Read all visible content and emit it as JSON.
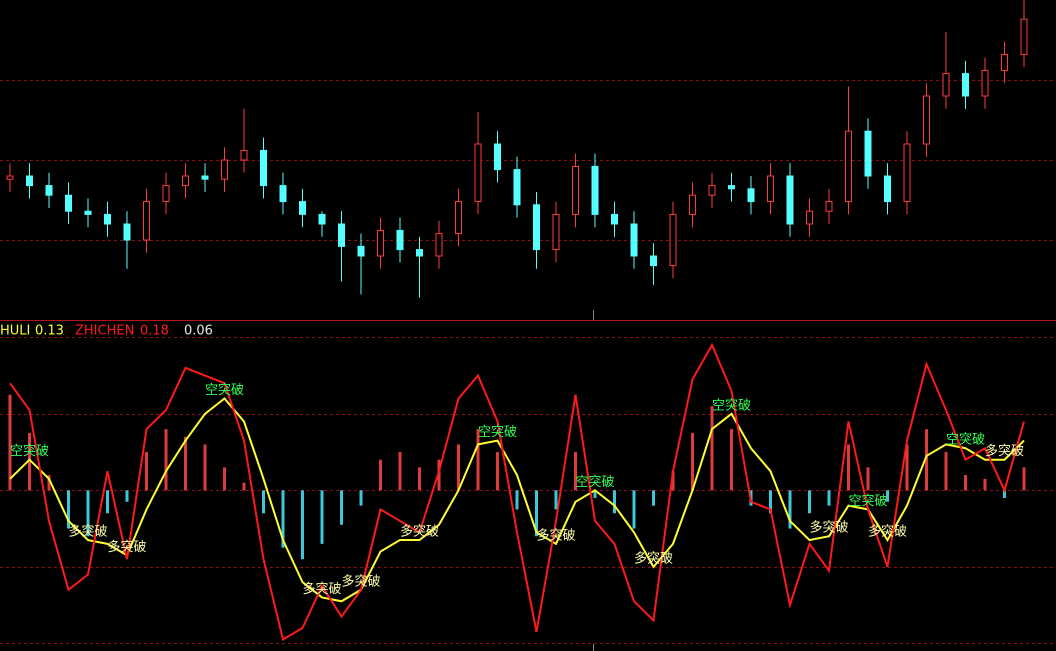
{
  "chart_data": [
    {
      "type": "candlestick",
      "open": [
        44,
        45,
        42,
        39,
        34,
        33,
        30,
        25,
        37,
        42,
        45,
        44,
        50,
        53,
        42,
        37,
        33,
        30,
        23,
        20,
        28,
        22,
        20,
        27,
        37,
        55,
        47,
        36,
        22,
        33,
        48,
        33,
        30,
        20,
        17,
        33,
        39,
        42,
        41,
        37,
        45,
        30,
        34,
        37,
        59,
        45,
        37,
        55,
        70,
        77,
        70,
        78,
        83
      ],
      "high": [
        49,
        49,
        46,
        43,
        38,
        37,
        34,
        41,
        46,
        49,
        49,
        54,
        66,
        57,
        46,
        41,
        34,
        34,
        27,
        32,
        32,
        26,
        31,
        41,
        65,
        59,
        51,
        40,
        37,
        52,
        52,
        37,
        34,
        24,
        37,
        43,
        46,
        46,
        45,
        49,
        49,
        38,
        41,
        73,
        63,
        49,
        59,
        74,
        90,
        81,
        82,
        87,
        100
      ],
      "low": [
        40,
        38,
        35,
        30,
        29,
        26,
        16,
        21,
        33,
        38,
        40,
        40,
        46,
        38,
        33,
        29,
        26,
        12,
        8,
        16,
        18,
        7,
        16,
        23,
        33,
        43,
        32,
        16,
        18,
        29,
        29,
        26,
        16,
        11,
        13,
        29,
        35,
        37,
        33,
        33,
        26,
        26,
        30,
        33,
        41,
        33,
        33,
        51,
        66,
        66,
        66,
        74,
        79
      ],
      "close": [
        45,
        42,
        39,
        34,
        33,
        30,
        25,
        37,
        42,
        45,
        44,
        50,
        53,
        42,
        37,
        33,
        30,
        23,
        20,
        28,
        22,
        20,
        27,
        37,
        55,
        47,
        36,
        22,
        33,
        48,
        33,
        30,
        20,
        17,
        33,
        39,
        42,
        41,
        37,
        45,
        30,
        34,
        37,
        59,
        45,
        37,
        55,
        70,
        77,
        70,
        78,
        83,
        94
      ],
      "up_color": "#ff3c3c",
      "down_color": "#54ffff",
      "ylim": [
        0,
        100
      ],
      "yticks": [
        25,
        50,
        75
      ],
      "grid": true,
      "grid_color": "#8c1010"
    },
    {
      "type": "line",
      "series": [
        {
          "name": "HULI",
          "type": "line",
          "color": "#ffff33",
          "values": [
            0.03,
            0.08,
            0.03,
            -0.08,
            -0.13,
            -0.14,
            -0.17,
            -0.05,
            0.05,
            0.13,
            0.2,
            0.24,
            0.18,
            0.03,
            -0.13,
            -0.24,
            -0.28,
            -0.29,
            -0.26,
            -0.16,
            -0.13,
            -0.13,
            -0.09,
            0,
            0.12,
            0.13,
            0.04,
            -0.11,
            -0.14,
            -0.03,
            0,
            -0.04,
            -0.11,
            -0.2,
            -0.14,
            0,
            0.16,
            0.2,
            0.11,
            0.05,
            -0.08,
            -0.13,
            -0.12,
            -0.04,
            -0.05,
            -0.13,
            -0.04,
            0.09,
            0.12,
            0.11,
            0.08,
            0.08,
            0.13
          ]
        },
        {
          "name": "ZHICHEN",
          "type": "line",
          "color": "#ff1a1a",
          "values": [
            0.28,
            0.21,
            -0.08,
            -0.26,
            -0.22,
            0.05,
            -0.18,
            0.16,
            0.21,
            0.32,
            0.3,
            0.28,
            0.13,
            -0.18,
            -0.39,
            -0.36,
            -0.25,
            -0.33,
            -0.26,
            -0.05,
            -0.08,
            -0.11,
            0.05,
            0.24,
            0.3,
            0.18,
            -0.11,
            -0.37,
            -0.08,
            0.25,
            -0.08,
            -0.14,
            -0.29,
            -0.34,
            0.05,
            0.29,
            0.38,
            0.26,
            -0.03,
            -0.05,
            -0.3,
            -0.14,
            -0.21,
            0.18,
            -0.05,
            -0.2,
            0.13,
            0.33,
            0.21,
            0.08,
            0.11,
            0,
            0.18
          ]
        },
        {
          "type": "bar",
          "up_color": "#e03c3c",
          "down_color": "#3cc8d8",
          "values": [
            0.25,
            0.15,
            0.04,
            -0.1,
            -0.12,
            -0.06,
            -0.03,
            0.1,
            0.16,
            0.14,
            0.12,
            0.06,
            0.02,
            -0.06,
            -0.15,
            -0.18,
            -0.14,
            -0.09,
            -0.04,
            0.08,
            0.1,
            0.06,
            0.08,
            0.12,
            0.16,
            0.1,
            -0.05,
            -0.12,
            -0.05,
            0.1,
            -0.02,
            -0.06,
            -0.1,
            -0.04,
            0.05,
            0.15,
            0.22,
            0.16,
            -0.04,
            -0.06,
            -0.1,
            -0.06,
            -0.04,
            0.12,
            0.06,
            -0.03,
            0.12,
            0.16,
            0.1,
            0.04,
            0.03,
            -0.02,
            0.06
          ]
        }
      ],
      "signals": [
        null,
        "空突破",
        null,
        null,
        "多突破",
        null,
        "多突破",
        null,
        null,
        null,
        null,
        "空突破",
        null,
        null,
        null,
        null,
        "多突破",
        null,
        "多突破",
        null,
        null,
        "多突破",
        null,
        null,
        null,
        "空突破",
        null,
        null,
        "多突破",
        null,
        "空突破",
        null,
        null,
        "多突破",
        null,
        null,
        null,
        "空突破",
        null,
        null,
        null,
        null,
        "多突破",
        null,
        "空突破",
        "多突破",
        null,
        null,
        null,
        "空突破",
        null,
        "多突破",
        null
      ],
      "signal_colors": {
        "空突破": "#33ff55",
        "多突破": "#ffffaa"
      },
      "value_color": "#e8e8e8",
      "ylim": [
        -0.42,
        0.44
      ],
      "yticks": [
        -0.4,
        -0.2,
        0,
        0.2,
        0.4
      ],
      "grid": true,
      "grid_color": "#8c1010"
    }
  ]
}
